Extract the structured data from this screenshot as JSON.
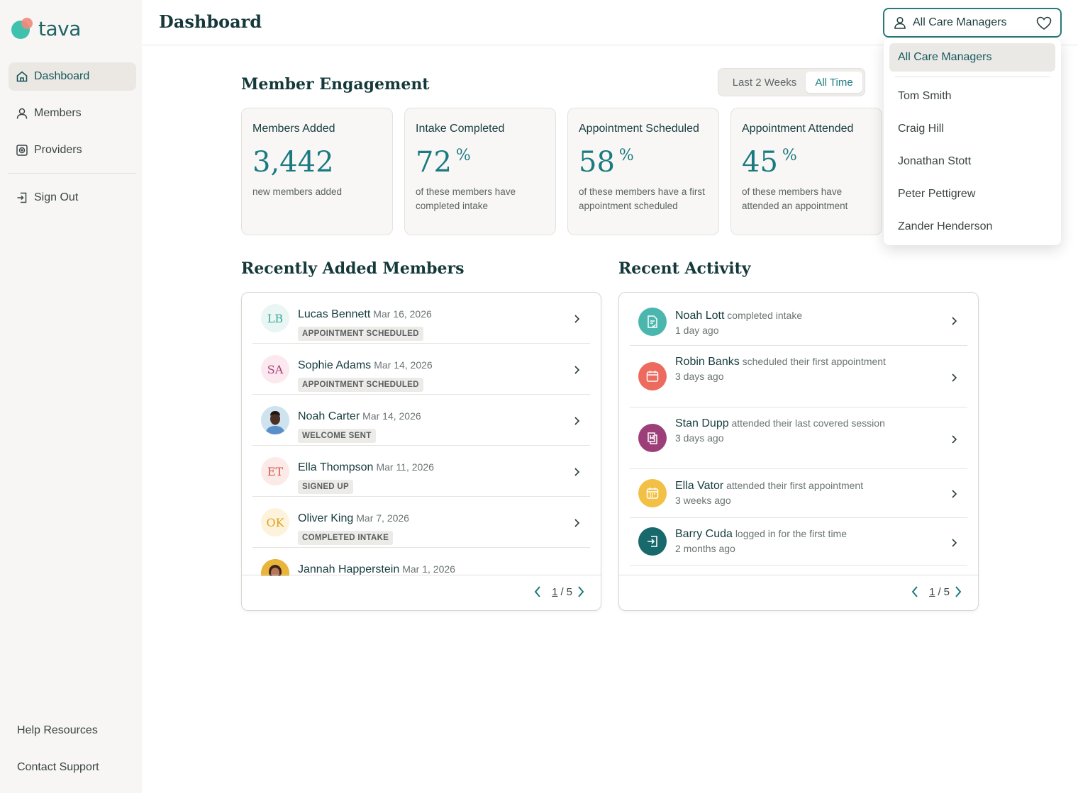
{
  "brand": {
    "name": "tava",
    "colors": {
      "teal": "#1a7a80",
      "coral": "#f08a7c",
      "mint": "#3fc2ad"
    }
  },
  "sidebar": {
    "items": [
      {
        "label": "Dashboard",
        "icon": "home-icon",
        "active": true
      },
      {
        "label": "Members",
        "icon": "user-icon"
      },
      {
        "label": "Providers",
        "icon": "providers-icon"
      },
      {
        "label": "Sign Out",
        "icon": "sign-out-icon"
      }
    ],
    "bottom": [
      "Help Resources",
      "Contact Support"
    ]
  },
  "header": {
    "title": "Dashboard",
    "care_manager_select": "All Care Managers"
  },
  "dropdown": {
    "options": [
      "All Care Managers",
      "Tom Smith",
      "Craig Hill",
      "Jonathan Stott",
      "Peter Pettigrew",
      "Zander Henderson"
    ],
    "selected": "All Care Managers"
  },
  "engagement": {
    "title": "Member Engagement",
    "range_options": [
      "Last 2 Weeks",
      "All Time"
    ],
    "range_selected": "All Time",
    "cards": [
      {
        "title": "Members Added",
        "value": "3,442",
        "unit": "",
        "desc": "new members added"
      },
      {
        "title": "Intake Completed",
        "value": "72",
        "unit": "%",
        "desc": "of these members have completed intake"
      },
      {
        "title": "Appointment Scheduled",
        "value": "58",
        "unit": "%",
        "desc": "of these members have a first appointment scheduled"
      },
      {
        "title": "Appointment Attended",
        "value": "45",
        "unit": "%",
        "desc": "of these members have attended an appointment"
      }
    ]
  },
  "recent_members": {
    "title": "Recently Added Members",
    "rows": [
      {
        "initials": "LB",
        "name": "Lucas Bennett",
        "date": "Mar 16, 2026",
        "status": "APPOINTMENT SCHEDULED",
        "avatar_bg": "#eaf6f3",
        "avatar_fg": "#3aa89a"
      },
      {
        "initials": "SA",
        "name": "Sophie Adams",
        "date": "Mar 14, 2026",
        "status": "APPOINTMENT SCHEDULED",
        "avatar_bg": "#fbe9ef",
        "avatar_fg": "#a8407a"
      },
      {
        "initials": "",
        "name": "Noah Carter",
        "date": "Mar 14, 2026",
        "status": "WELCOME SENT",
        "avatar_bg": "#cfe3ee",
        "avatar_fg": "#2d2d2d",
        "photo": true
      },
      {
        "initials": "ET",
        "name": "Ella Thompson",
        "date": "Mar 11, 2026",
        "status": "SIGNED UP",
        "avatar_bg": "#fbeae7",
        "avatar_fg": "#d0564a"
      },
      {
        "initials": "OK",
        "name": "Oliver King",
        "date": "Mar 7, 2026",
        "status": "COMPLETED INTAKE",
        "avatar_bg": "#fdf3dc",
        "avatar_fg": "#e0a21c"
      },
      {
        "initials": "",
        "name": "Jannah Happerstein",
        "date": "Mar 1, 2026",
        "status": "",
        "avatar_bg": "#e8b43a",
        "avatar_fg": "#2d2d2d",
        "photo": true
      }
    ],
    "pager": {
      "current": "1",
      "total": "5"
    }
  },
  "recent_activity": {
    "title": "Recent Activity",
    "rows": [
      {
        "who": "Noah Lott",
        "action": "completed intake",
        "time": "1 day ago",
        "icon": "document-check-icon",
        "color": "#4bb6ad",
        "h": 75
      },
      {
        "who": "Robin Banks",
        "action": "scheduled their first appointment",
        "time": "3 days ago",
        "icon": "calendar-icon",
        "color": "#ec6a5e",
        "h": 87
      },
      {
        "who": "Stan Dupp",
        "action": "attended their last covered session",
        "time": "3 days ago",
        "icon": "session-icon",
        "color": "#9c3f78",
        "h": 87
      },
      {
        "who": "Ella Vator",
        "action": "attended their first appointment",
        "time": "3 weeks ago",
        "icon": "calendar-icon",
        "color": "#f3c046",
        "h": 69
      },
      {
        "who": "Barry Cuda",
        "action": "logged in for the first time",
        "time": "2 months ago",
        "icon": "login-icon",
        "color": "#17696b",
        "h": 67
      }
    ],
    "pager": {
      "current": "1",
      "total": "5"
    }
  }
}
